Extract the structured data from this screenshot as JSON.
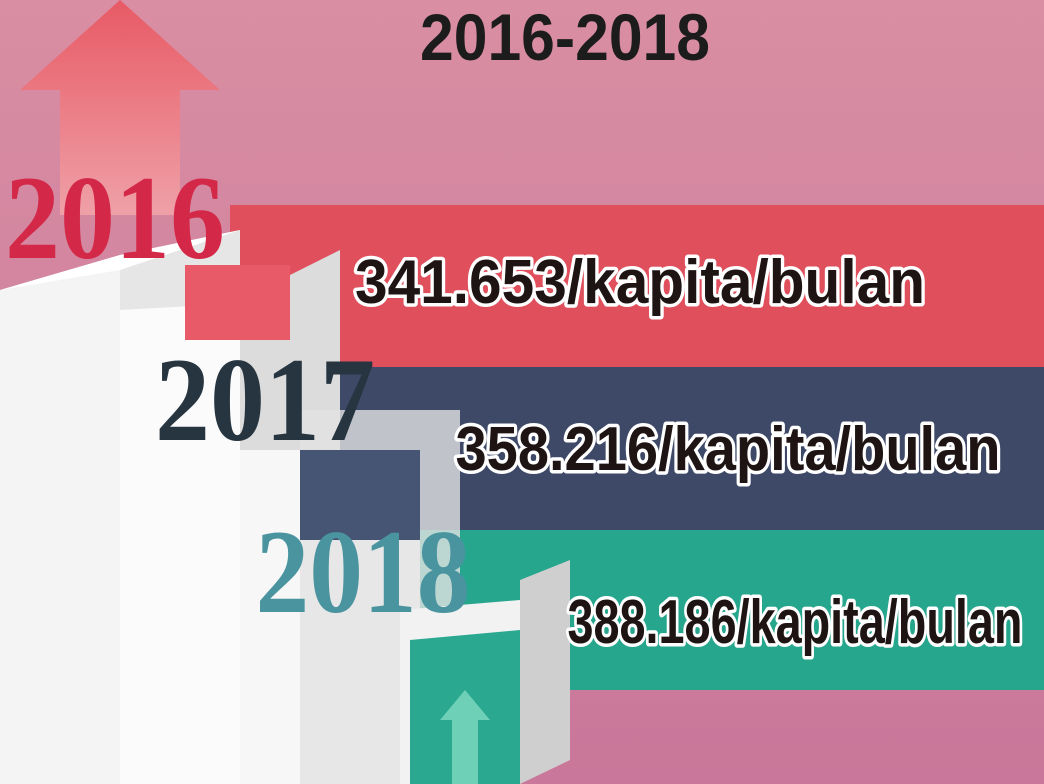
{
  "header": {
    "title": "2016-2018"
  },
  "items": [
    {
      "year": "2016",
      "value": "341.653/kapita/bulan"
    },
    {
      "year": "2017",
      "value": "358.216/kapita/bulan"
    },
    {
      "year": "2018",
      "value": "388.186/kapita/bulan"
    }
  ]
}
